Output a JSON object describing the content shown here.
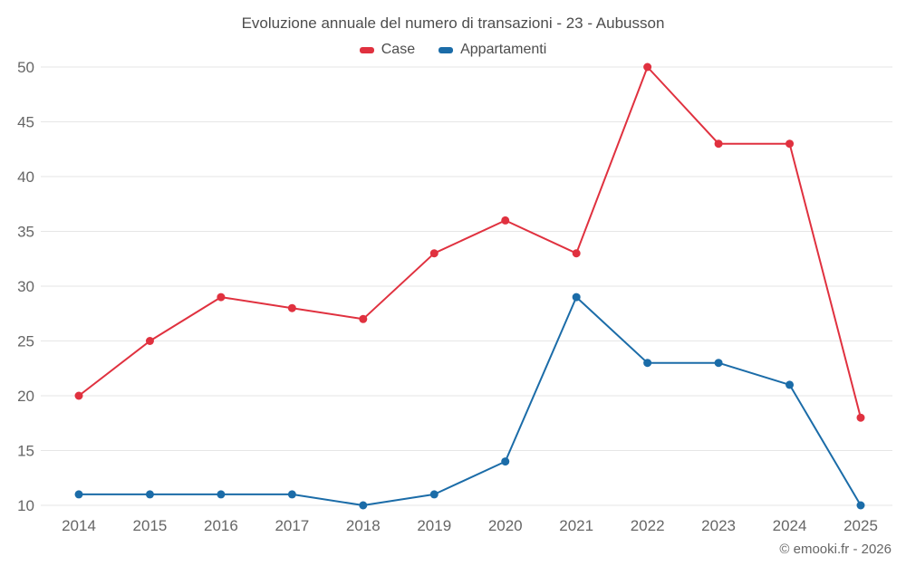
{
  "title": "Evoluzione annuale del numero di transazioni - 23 - Aubusson",
  "footer": "© emooki.fr - 2026",
  "chart_data": {
    "type": "line",
    "title": "Evoluzione annuale del numero di transazioni - 23 - Aubusson",
    "x": [
      "2014",
      "2015",
      "2016",
      "2017",
      "2018",
      "2019",
      "2020",
      "2021",
      "2022",
      "2023",
      "2024",
      "2025"
    ],
    "series": [
      {
        "name": "Case",
        "color": "#e0313f",
        "values": [
          20,
          25,
          29,
          28,
          27,
          33,
          36,
          33,
          50,
          43,
          43,
          18
        ]
      },
      {
        "name": "Appartamenti",
        "color": "#1b6ca8",
        "values": [
          11,
          11,
          11,
          11,
          10,
          11,
          14,
          29,
          23,
          23,
          21,
          10
        ]
      }
    ],
    "xlabel": "",
    "ylabel": "",
    "ylim": [
      10,
      50
    ],
    "yticks": [
      10,
      15,
      20,
      25,
      30,
      35,
      40,
      45,
      50
    ],
    "grid": "horizontal",
    "legend_position": "top"
  }
}
